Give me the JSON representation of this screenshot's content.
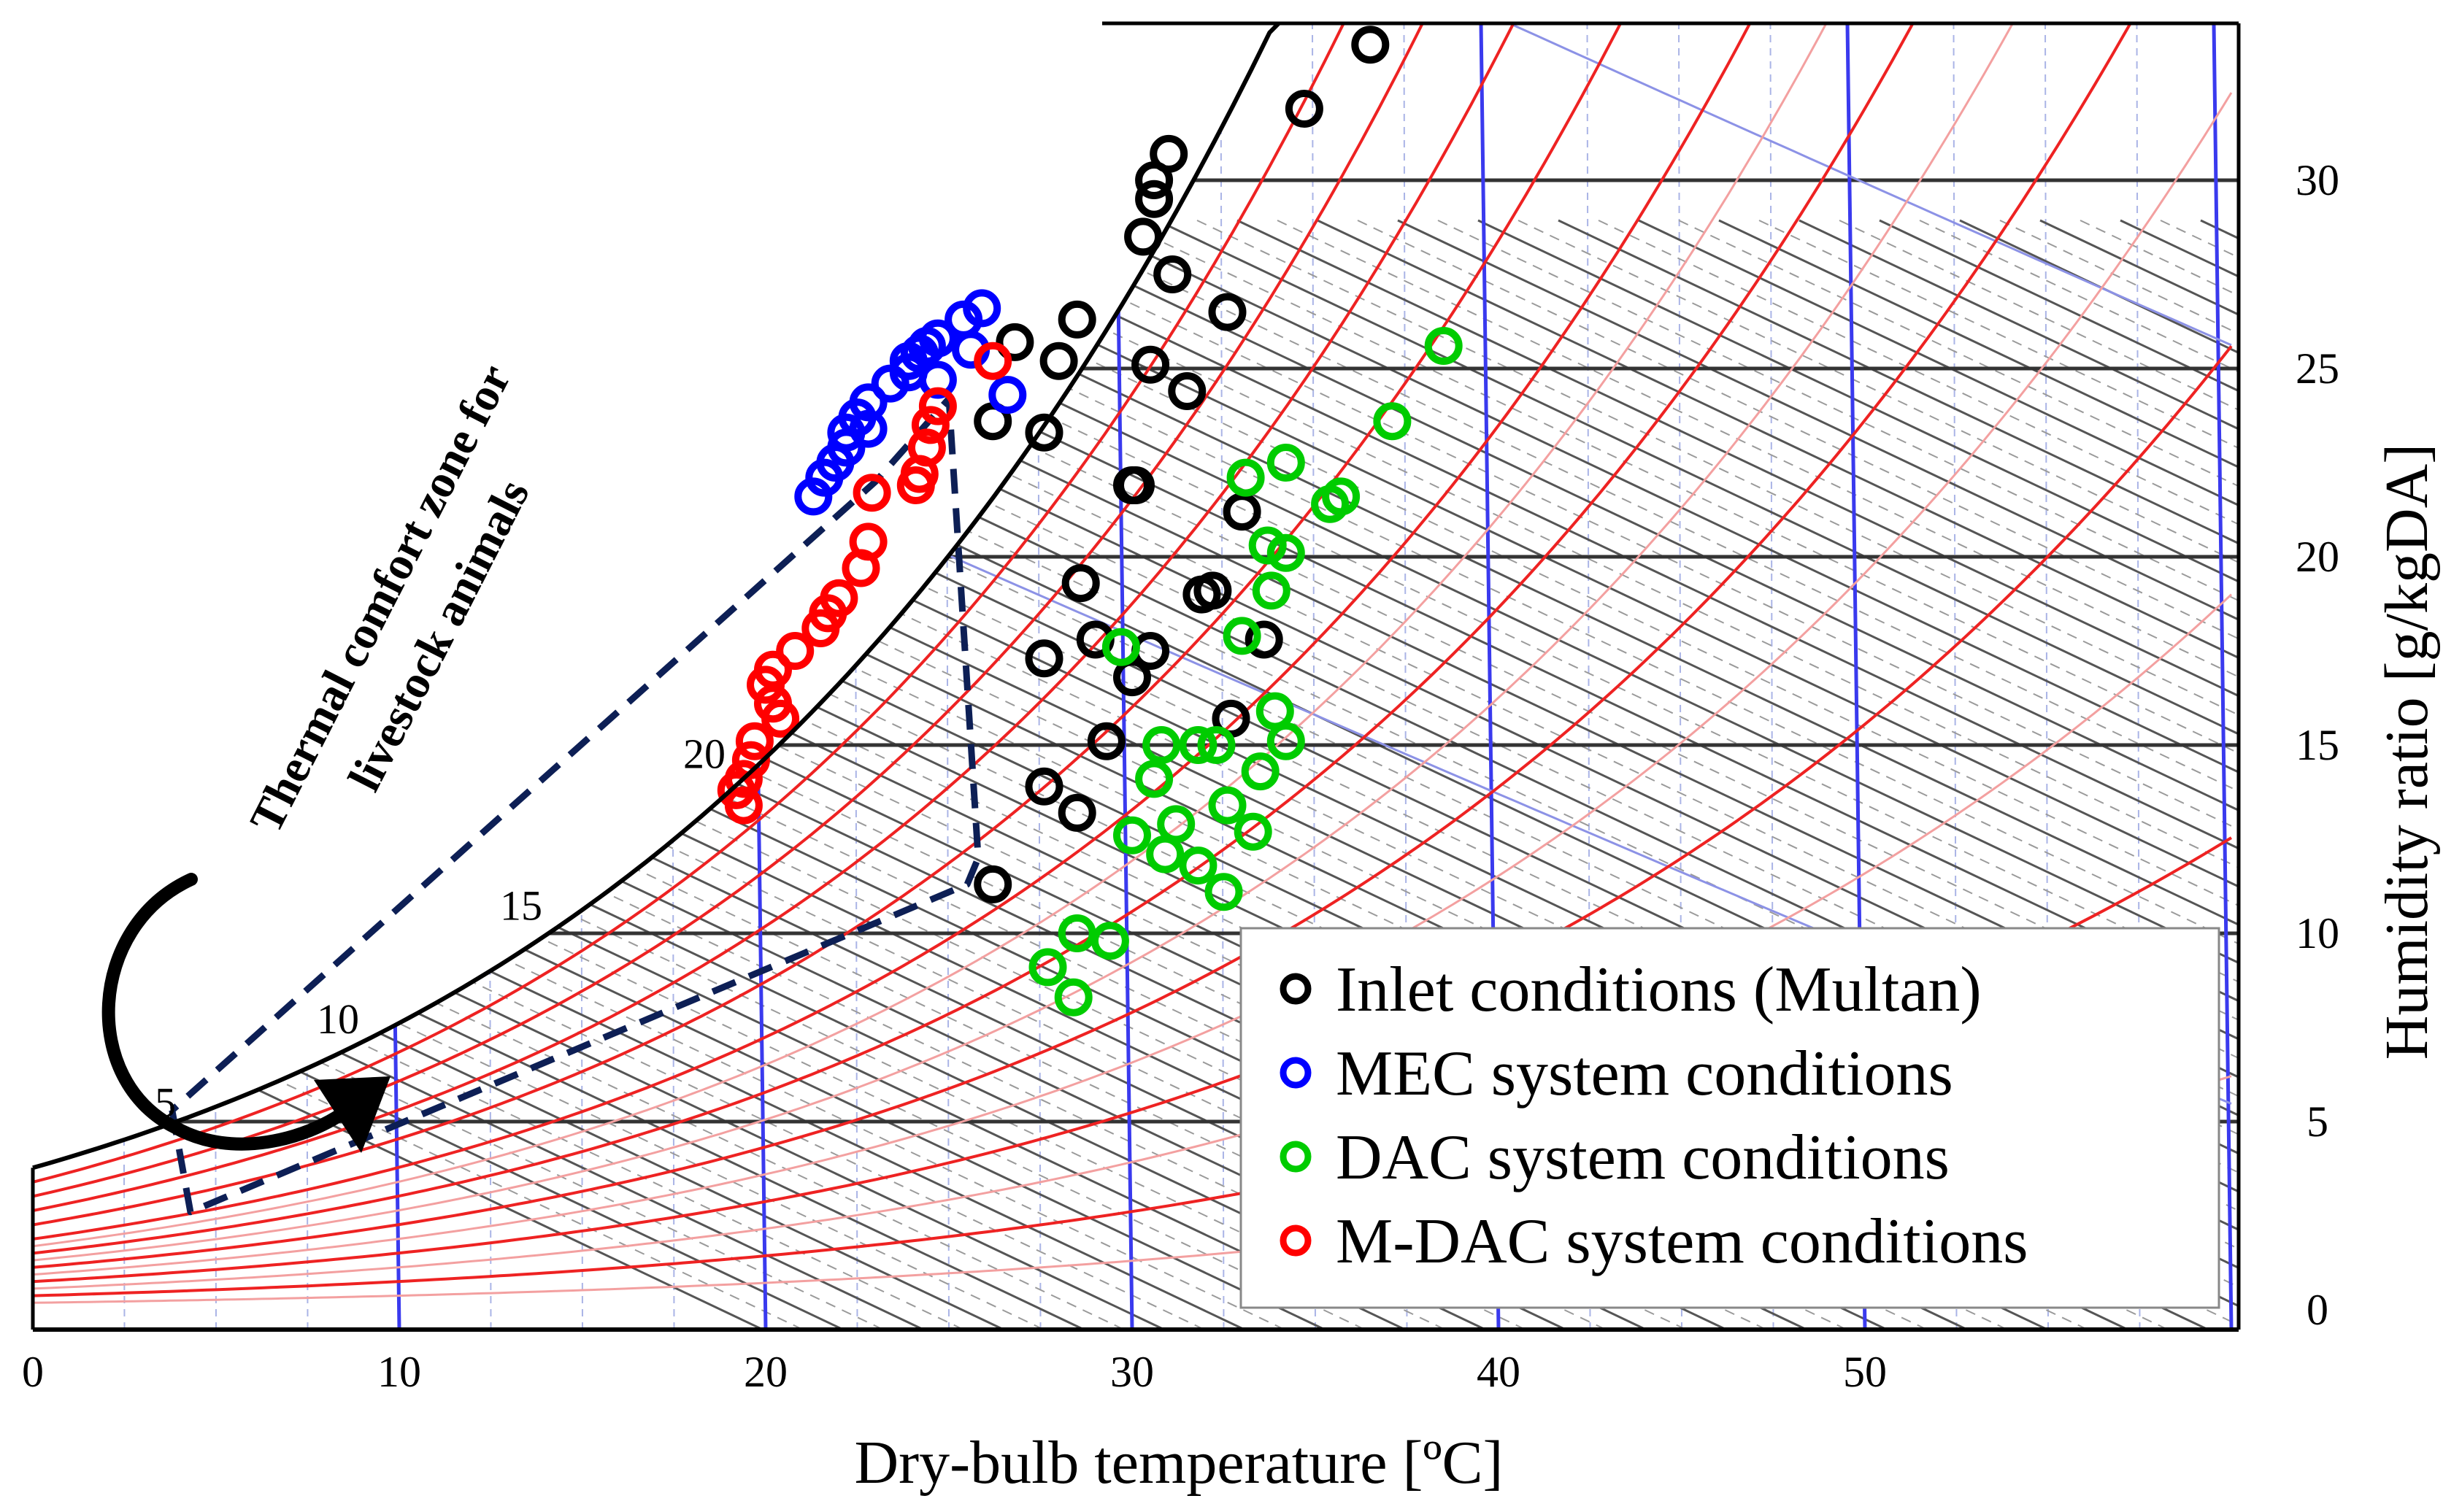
{
  "chart_data": {
    "type": "scatter",
    "title": "",
    "xlabel": "Dry-bulb temperature [ºC]",
    "ylabel": "Humidity ratio [g/kgDA]",
    "xlim": [
      0,
      60
    ],
    "ylim": [
      0,
      33
    ],
    "x_ticks": [
      "0",
      "10",
      "20",
      "30",
      "40",
      "50"
    ],
    "x_tick_values": [
      0,
      10,
      20,
      30,
      40,
      50
    ],
    "y_ticks": [
      "0",
      "5",
      "10",
      "15",
      "20",
      "25",
      "30"
    ],
    "y_tick_values": [
      0,
      5,
      10,
      15,
      20,
      25,
      30
    ],
    "wet_bulb_labels": [
      "5",
      "10",
      "15",
      "20"
    ],
    "wet_bulb_values": [
      5,
      10,
      15,
      20
    ],
    "grid": true,
    "legend_position": "bottom-right",
    "annotation": {
      "lines": [
        "Thermal comfort zone for",
        "livestock animals"
      ]
    },
    "comfort_zone": {
      "vertices": [
        [
          3.8,
          5.3
        ],
        [
          4.3,
          2.6
        ],
        [
          25.5,
          11.3
        ],
        [
          25.8,
          12.0
        ],
        [
          25.0,
          24.2
        ],
        [
          23.0,
          22.0
        ],
        [
          3.8,
          5.3
        ]
      ]
    },
    "series": [
      {
        "name": "Inlet conditions (Multan)",
        "color": "#000000",
        "points": [
          [
            36.5,
            33.6
          ],
          [
            34.7,
            31.9
          ],
          [
            31.0,
            30.7
          ],
          [
            30.6,
            30.0
          ],
          [
            30.6,
            29.5
          ],
          [
            30.3,
            28.5
          ],
          [
            31.1,
            27.5
          ],
          [
            32.6,
            26.5
          ],
          [
            28.5,
            26.3
          ],
          [
            26.8,
            25.7
          ],
          [
            28.0,
            25.2
          ],
          [
            30.5,
            25.1
          ],
          [
            31.5,
            24.4
          ],
          [
            26.2,
            23.6
          ],
          [
            27.6,
            23.3
          ],
          [
            30.1,
            21.9
          ],
          [
            30.0,
            21.9
          ],
          [
            33.0,
            21.2
          ],
          [
            28.6,
            19.3
          ],
          [
            32.2,
            19.1
          ],
          [
            31.9,
            19.0
          ],
          [
            33.6,
            17.8
          ],
          [
            29.0,
            17.8
          ],
          [
            30.5,
            17.5
          ],
          [
            27.6,
            17.3
          ],
          [
            30.0,
            16.8
          ],
          [
            32.7,
            15.7
          ],
          [
            29.3,
            15.1
          ],
          [
            27.6,
            13.9
          ],
          [
            28.5,
            13.2
          ],
          [
            26.2,
            11.3
          ]
        ]
      },
      {
        "name": "MEC system conditions",
        "color": "#0000ff",
        "points": [
          [
            25.9,
            26.6
          ],
          [
            25.4,
            26.3
          ],
          [
            24.7,
            25.8
          ],
          [
            24.4,
            25.6
          ],
          [
            24.2,
            25.4
          ],
          [
            23.9,
            25.2
          ],
          [
            23.9,
            24.9
          ],
          [
            23.4,
            24.6
          ],
          [
            22.8,
            24.1
          ],
          [
            22.5,
            23.7
          ],
          [
            22.8,
            23.4
          ],
          [
            22.2,
            23.3
          ],
          [
            22.2,
            22.9
          ],
          [
            21.9,
            22.5
          ],
          [
            21.6,
            22.1
          ],
          [
            21.3,
            21.6
          ],
          [
            26.6,
            24.3
          ],
          [
            25.6,
            25.5
          ],
          [
            24.7,
            24.7
          ]
        ]
      },
      {
        "name": "DAC system conditions",
        "color": "#00cc00",
        "points": [
          [
            38.5,
            25.6
          ],
          [
            37.1,
            23.6
          ],
          [
            34.2,
            22.5
          ],
          [
            33.1,
            22.1
          ],
          [
            35.7,
            21.6
          ],
          [
            35.4,
            21.4
          ],
          [
            33.7,
            20.3
          ],
          [
            34.2,
            20.1
          ],
          [
            33.8,
            19.1
          ],
          [
            33.0,
            17.9
          ],
          [
            29.7,
            17.6
          ],
          [
            33.9,
            15.9
          ],
          [
            34.2,
            15.1
          ],
          [
            30.8,
            15.0
          ],
          [
            31.8,
            15.0
          ],
          [
            32.3,
            15.0
          ],
          [
            33.5,
            14.3
          ],
          [
            30.6,
            14.1
          ],
          [
            32.6,
            13.4
          ],
          [
            31.2,
            12.9
          ],
          [
            30.0,
            12.6
          ],
          [
            33.3,
            12.7
          ],
          [
            30.9,
            12.1
          ],
          [
            31.8,
            11.8
          ],
          [
            32.5,
            11.1
          ],
          [
            28.5,
            10.0
          ],
          [
            29.4,
            9.8
          ],
          [
            27.7,
            9.1
          ],
          [
            28.4,
            8.3
          ]
        ]
      },
      {
        "name": "M-DAC system conditions",
        "color": "#ff0000",
        "points": [
          [
            26.2,
            25.2
          ],
          [
            24.7,
            24.0
          ],
          [
            24.5,
            23.5
          ],
          [
            24.4,
            22.9
          ],
          [
            24.2,
            22.2
          ],
          [
            24.1,
            21.9
          ],
          [
            22.9,
            21.7
          ],
          [
            22.8,
            20.4
          ],
          [
            22.6,
            19.7
          ],
          [
            22.0,
            18.9
          ],
          [
            21.7,
            18.5
          ],
          [
            21.5,
            18.1
          ],
          [
            20.8,
            17.5
          ],
          [
            20.2,
            17.0
          ],
          [
            20.0,
            16.6
          ],
          [
            20.2,
            16.1
          ],
          [
            20.4,
            15.7
          ],
          [
            19.7,
            15.1
          ],
          [
            19.6,
            14.6
          ],
          [
            19.4,
            14.1
          ],
          [
            19.2,
            13.8
          ],
          [
            19.4,
            13.4
          ]
        ]
      }
    ]
  }
}
